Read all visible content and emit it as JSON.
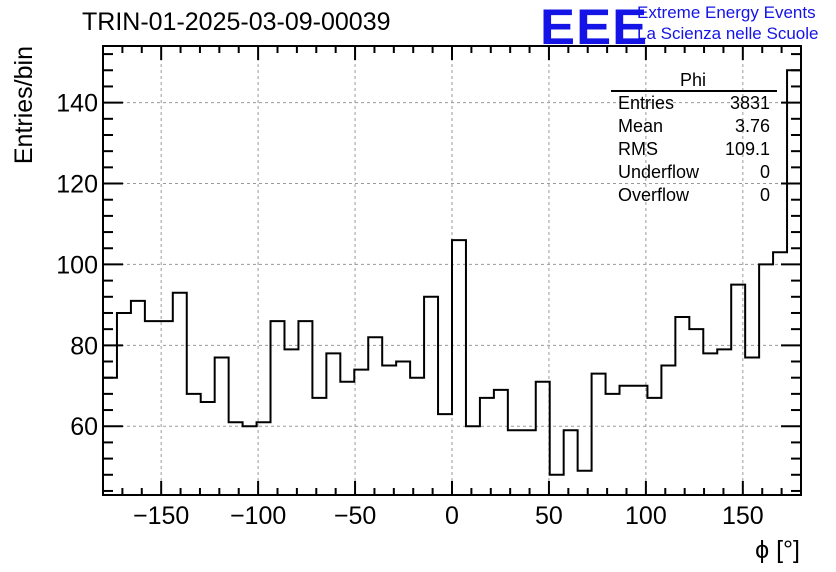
{
  "header": {
    "title": "TRIN-01-2025-03-09-00039",
    "logo_text": "EEE",
    "logo_line1": "Extreme Energy Events",
    "logo_line2": "La Scienza nelle Scuole",
    "logo_color": "#1414e6"
  },
  "stats": {
    "name": "Phi",
    "rows": [
      {
        "label": "Entries",
        "value": "3831"
      },
      {
        "label": "Mean",
        "value": "3.76"
      },
      {
        "label": "RMS",
        "value": "109.1"
      },
      {
        "label": "Underflow",
        "value": "0"
      },
      {
        "label": "Overflow",
        "value": "0"
      }
    ]
  },
  "chart_data": {
    "type": "bar",
    "style": "step-histogram",
    "title": "TRIN-01-2025-03-09-00039",
    "xlabel": "ϕ [°]",
    "ylabel": "Entries/bin",
    "xlim": [
      -180,
      180
    ],
    "ylim": [
      43,
      154
    ],
    "bin_width": 7.2,
    "xticks": [
      -150,
      -100,
      -50,
      0,
      50,
      100,
      150
    ],
    "xtick_labels": [
      "−150",
      "−100",
      "−50",
      "0",
      "50",
      "100",
      "150"
    ],
    "yticks": [
      60,
      80,
      100,
      120,
      140
    ],
    "grid": true,
    "values": [
      72,
      88,
      91,
      86,
      86,
      93,
      68,
      66,
      77,
      61,
      60,
      61,
      86,
      79,
      86,
      67,
      78,
      71,
      74,
      82,
      75,
      76,
      72,
      92,
      63,
      106,
      60,
      67,
      69,
      59,
      59,
      71,
      48,
      59,
      49,
      73,
      68,
      70,
      70,
      67,
      75,
      87,
      84,
      78,
      79,
      95,
      77,
      100,
      103,
      148
    ]
  }
}
